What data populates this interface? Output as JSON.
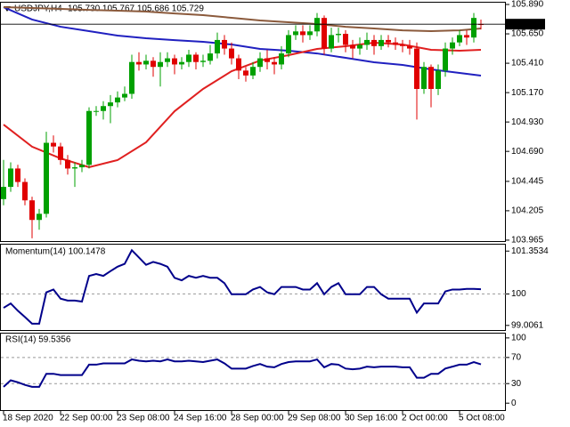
{
  "chart_data": [
    {
      "type": "candlestick",
      "title": "USDJPY,H4",
      "subtitle": "105.730 105.767 105.686 105.729",
      "categories": [
        "18 Sep 2020",
        null,
        null,
        null,
        null,
        null,
        null,
        null,
        "22 Sep 00:00",
        null,
        null,
        null,
        null,
        null,
        null,
        null,
        "23 Sep 08:00",
        null,
        null,
        null,
        null,
        null,
        null,
        null,
        "24 Sep 16:00",
        null,
        null,
        null,
        null,
        null,
        null,
        null,
        "28 Sep 00:00",
        null,
        null,
        null,
        null,
        null,
        null,
        null,
        "29 Sep 08:00",
        null,
        null,
        null,
        null,
        null,
        null,
        null,
        "30 Sep 16:00",
        null,
        null,
        null,
        null,
        null,
        null,
        null,
        "2 Oct 00:00",
        null,
        null,
        null,
        null,
        null,
        null,
        null,
        "5 Oct 08:00",
        null,
        null,
        null
      ],
      "open": [
        104.3,
        104.4,
        104.55,
        104.44,
        104.29,
        104.13,
        104.18,
        104.76,
        104.73,
        104.62,
        104.55,
        104.56,
        104.58,
        105.02,
        105.02,
        105.06,
        105.09,
        105.13,
        105.16,
        105.42,
        105.4,
        105.43,
        105.38,
        105.42,
        105.45,
        105.4,
        105.42,
        105.48,
        105.42,
        105.43,
        105.49,
        105.6,
        105.53,
        105.45,
        105.35,
        105.31,
        105.38,
        105.45,
        105.42,
        105.4,
        105.49,
        105.64,
        105.67,
        105.64,
        105.67,
        105.78,
        105.53,
        105.64,
        105.65,
        105.56,
        105.53,
        105.56,
        105.6,
        105.55,
        105.6,
        105.58,
        105.56,
        105.55,
        105.53,
        105.2,
        105.38,
        105.2,
        105.35,
        105.53,
        105.58,
        105.64,
        105.62,
        105.73
      ],
      "high": [
        104.62,
        104.6,
        104.58,
        104.47,
        104.32,
        104.22,
        104.85,
        104.82,
        104.76,
        104.66,
        104.6,
        104.62,
        105.05,
        105.06,
        105.1,
        105.15,
        105.18,
        105.22,
        105.48,
        105.5,
        105.48,
        105.46,
        105.5,
        105.5,
        105.48,
        105.46,
        105.52,
        105.5,
        105.48,
        105.56,
        105.66,
        105.64,
        105.58,
        105.48,
        105.38,
        105.42,
        105.5,
        105.52,
        105.46,
        105.55,
        105.68,
        105.72,
        105.72,
        105.72,
        105.82,
        105.8,
        105.7,
        105.7,
        105.68,
        105.6,
        105.62,
        105.66,
        105.64,
        105.64,
        105.64,
        105.62,
        105.6,
        105.6,
        105.58,
        105.42,
        105.4,
        105.4,
        105.58,
        105.62,
        105.68,
        105.68,
        105.82,
        105.767
      ],
      "low": [
        104.25,
        104.36,
        104.4,
        104.25,
        103.98,
        104.05,
        104.15,
        104.68,
        104.58,
        104.5,
        104.4,
        104.52,
        104.55,
        104.98,
        104.95,
        104.92,
        105.05,
        105.1,
        105.12,
        105.35,
        105.36,
        105.3,
        105.22,
        105.38,
        105.32,
        105.36,
        105.38,
        105.36,
        105.38,
        105.4,
        105.45,
        105.48,
        105.4,
        105.28,
        105.26,
        105.28,
        105.34,
        105.36,
        105.32,
        105.36,
        105.46,
        105.6,
        105.58,
        105.6,
        105.63,
        105.48,
        105.5,
        105.58,
        105.5,
        105.45,
        105.48,
        105.52,
        105.48,
        105.52,
        105.54,
        105.52,
        105.5,
        105.48,
        104.95,
        105.16,
        105.05,
        105.15,
        105.3,
        105.48,
        105.55,
        105.56,
        105.58,
        105.686
      ],
      "close": [
        104.4,
        104.55,
        104.44,
        104.29,
        104.13,
        104.18,
        104.76,
        104.73,
        104.62,
        104.55,
        104.56,
        104.58,
        105.02,
        105.02,
        105.06,
        105.09,
        105.13,
        105.16,
        105.42,
        105.4,
        105.43,
        105.38,
        105.42,
        105.45,
        105.4,
        105.42,
        105.48,
        105.42,
        105.43,
        105.49,
        105.6,
        105.53,
        105.45,
        105.35,
        105.31,
        105.38,
        105.45,
        105.42,
        105.4,
        105.49,
        105.64,
        105.67,
        105.64,
        105.67,
        105.78,
        105.53,
        105.64,
        105.65,
        105.56,
        105.53,
        105.56,
        105.6,
        105.55,
        105.6,
        105.58,
        105.56,
        105.55,
        105.53,
        105.2,
        105.38,
        105.2,
        105.35,
        105.53,
        105.58,
        105.64,
        105.62,
        105.78,
        105.729
      ],
      "up_color": "#00a000",
      "down_color": "#e00000",
      "series": [
        {
          "color": "#2020c0",
          "x": [
            0,
            4,
            8,
            12,
            16,
            20,
            24,
            28,
            32,
            36,
            40,
            44,
            48,
            52,
            56,
            60,
            64,
            67
          ],
          "values": [
            105.868,
            105.767,
            105.708,
            105.672,
            105.636,
            105.614,
            105.599,
            105.585,
            105.563,
            105.527,
            105.512,
            105.49,
            105.454,
            105.418,
            105.396,
            105.36,
            105.331,
            105.309
          ]
        },
        {
          "color": "#8b5a3c",
          "x": [
            0,
            4,
            8,
            12,
            16,
            20,
            24,
            28,
            32,
            36,
            40,
            44,
            48,
            52,
            56,
            60,
            64,
            67
          ],
          "values": [
            105.868,
            105.861,
            105.854,
            105.846,
            105.839,
            105.832,
            105.817,
            105.803,
            105.781,
            105.759,
            105.745,
            105.73,
            105.708,
            105.694,
            105.679,
            105.672,
            105.679,
            105.694
          ]
        },
        {
          "color": "#e02020",
          "x": [
            0,
            4,
            8,
            12,
            16,
            20,
            24,
            28,
            32,
            36,
            40,
            44,
            48,
            52,
            56,
            60,
            64,
            67
          ],
          "values": [
            104.909,
            104.728,
            104.633,
            104.561,
            104.619,
            104.764,
            105.018,
            105.2,
            105.345,
            105.432,
            105.476,
            105.527,
            105.549,
            105.578,
            105.563,
            105.52,
            105.512,
            105.52
          ]
        }
      ],
      "last_price": 105.729,
      "ylim": [
        103.95,
        105.912
      ],
      "yticks": [
        {
          "value": 105.89,
          "label": "105.890"
        },
        {
          "value": 105.65,
          "label": "105.650"
        },
        {
          "value": 105.41,
          "label": "105.410"
        },
        {
          "value": 105.17,
          "label": "105.170"
        },
        {
          "value": 104.93,
          "label": "104.930"
        },
        {
          "value": 104.69,
          "label": "104.690"
        },
        104.445,
        104.205,
        {
          "value": 103.965,
          "label": "103.965"
        }
      ]
    },
    {
      "type": "line",
      "title": "Momentum(14) 100.1478",
      "color": "#00008b",
      "values": [
        99.56,
        99.7,
        99.47,
        99.27,
        99.06,
        99.06,
        100.05,
        100.14,
        99.85,
        99.79,
        99.79,
        99.76,
        100.57,
        100.63,
        100.57,
        100.72,
        100.86,
        100.95,
        101.38,
        101.15,
        100.92,
        101.01,
        100.95,
        100.86,
        100.51,
        100.43,
        100.57,
        100.51,
        100.57,
        100.51,
        100.51,
        100.34,
        99.99,
        99.99,
        99.99,
        100.14,
        100.22,
        100.05,
        99.99,
        100.22,
        100.22,
        100.22,
        100.14,
        100.14,
        100.34,
        99.99,
        100.22,
        100.34,
        99.99,
        99.99,
        99.99,
        100.22,
        100.22,
        99.99,
        99.85,
        99.85,
        99.85,
        99.85,
        99.41,
        99.7,
        99.7,
        99.7,
        100.08,
        100.14,
        100.14,
        100.16,
        100.16,
        100.15
      ],
      "ylim": [
        98.832,
        101.585
      ],
      "yticks": [
        101.3534,
        100,
        99.0061
      ],
      "levels": [
        100
      ]
    },
    {
      "type": "line",
      "title": "RSI(14) 59.5356",
      "color": "#00008b",
      "values": [
        25,
        35,
        32,
        28,
        25,
        25,
        45,
        45,
        43,
        43,
        43,
        43,
        59,
        59,
        61,
        61,
        61,
        61,
        67,
        65,
        64,
        65,
        64,
        67,
        64,
        64,
        65,
        64,
        63,
        65,
        67,
        61,
        53,
        53,
        53,
        57,
        60,
        56,
        55,
        60,
        63,
        64,
        64,
        64,
        67,
        55,
        60,
        59,
        53,
        52,
        53,
        56,
        55,
        56,
        56,
        56,
        55,
        55,
        39,
        39,
        45,
        45,
        53,
        56,
        59,
        59,
        63,
        59.54
      ],
      "ylim": [
        -12,
        108
      ],
      "yticks": [
        100,
        70,
        30,
        0
      ],
      "levels": [
        70,
        30
      ]
    }
  ]
}
